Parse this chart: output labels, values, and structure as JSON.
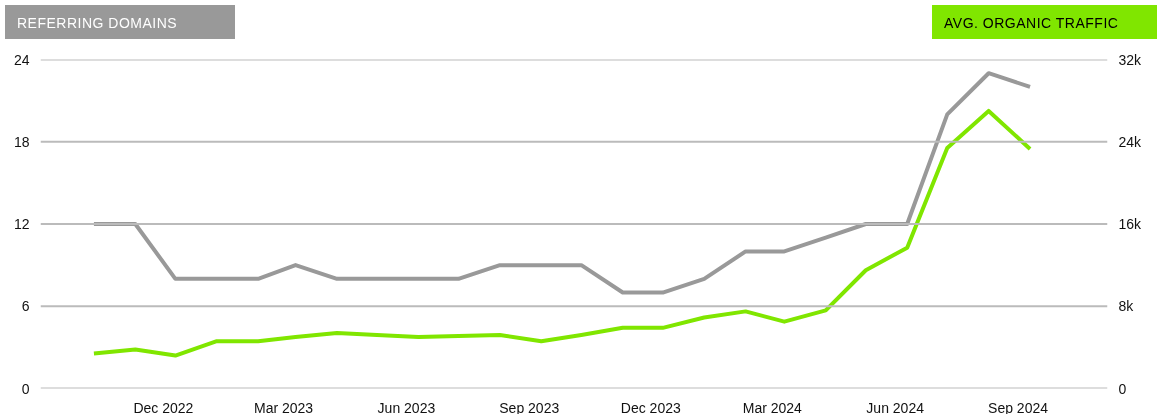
{
  "chart_data": {
    "type": "line",
    "ylabel": "REFERRING DOMAINS",
    "y2label": "AVG. ORGANIC TRAFFIC",
    "x": [
      "2022-10-10",
      "2022-11-10",
      "2022-12-10",
      "2023-01-10",
      "2023-02-10",
      "2023-03-10",
      "2023-04-10",
      "2023-05-10",
      "2023-06-10",
      "2023-07-10",
      "2023-08-10",
      "2023-09-10",
      "2023-10-10",
      "2023-11-10",
      "2023-12-10",
      "2024-01-10",
      "2024-02-10",
      "2024-03-10",
      "2024-04-10",
      "2024-05-10",
      "2024-06-10",
      "2024-07-10",
      "2024-08-10",
      "2024-09-10"
    ],
    "series": [
      {
        "color": "#999999",
        "values": [
          12,
          12,
          8,
          8,
          8,
          9,
          8,
          8,
          8,
          8,
          9,
          9,
          9,
          7,
          7,
          8,
          10,
          10,
          11,
          12,
          12,
          20,
          23,
          22
        ]
      },
      {
        "color": "#80e600",
        "axis": "y2",
        "values": [
          3400,
          3800,
          3200,
          4600,
          4600,
          5000,
          5400,
          5200,
          5000,
          5100,
          5200,
          4600,
          5200,
          5900,
          5900,
          6900,
          7500,
          6500,
          7600,
          11500,
          13700,
          23400,
          27000,
          23300
        ]
      }
    ],
    "xlim": [
      "2022-08-31",
      "2024-11-07"
    ],
    "xticks": [
      {
        "value": "2022-12-01",
        "label": "Dec 2022"
      },
      {
        "value": "2023-03-01",
        "label": "Mar 2023"
      },
      {
        "value": "2023-06-01",
        "label": "Jun 2023"
      },
      {
        "value": "2023-09-01",
        "label": "Sep 2023"
      },
      {
        "value": "2023-12-01",
        "label": "Dec 2023"
      },
      {
        "value": "2024-03-01",
        "label": "Mar 2024"
      },
      {
        "value": "2024-06-01",
        "label": "Jun 2024"
      },
      {
        "value": "2024-09-01",
        "label": "Sep 2024"
      }
    ],
    "ylim": [
      0,
      24
    ],
    "yticks": [
      0,
      6,
      12,
      18,
      24
    ],
    "y2lim": [
      0,
      32000
    ],
    "y2ticks": [
      0,
      {
        "value": 8000,
        "label": "8k"
      },
      {
        "value": 16000,
        "label": "16k"
      },
      {
        "value": 24000,
        "label": "24k"
      },
      {
        "value": 32000,
        "label": "32k"
      }
    ],
    "grid": "y",
    "marker": "none",
    "line_style": "solid"
  }
}
